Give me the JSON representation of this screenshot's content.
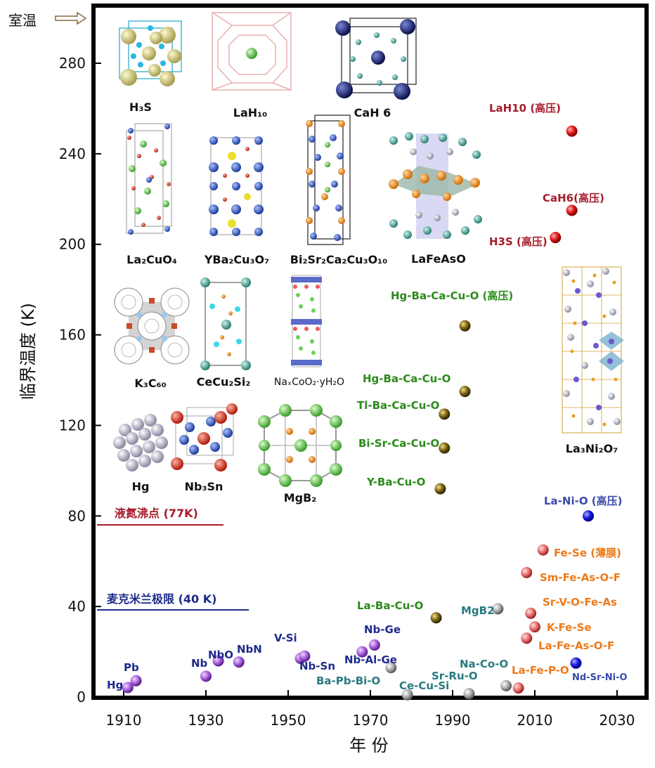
{
  "chart_data": {
    "type": "scatter",
    "xlabel": "年 份",
    "ylabel": "临界温度 (K)",
    "xlim": [
      1902,
      2038
    ],
    "ylim": [
      0,
      300
    ],
    "xticks": [
      1910,
      1930,
      1950,
      1970,
      1990,
      2010,
      2030
    ],
    "yticks": [
      0,
      40,
      80,
      120,
      160,
      200,
      240,
      280
    ],
    "room_temperature_label": "室温",
    "room_temperature_value": 298,
    "reference_lines": [
      {
        "label": "液氮沸点 (77K)",
        "value": 77,
        "color": "#a51c2a"
      },
      {
        "label": "麦克米兰极限 (40 K)",
        "value": 40,
        "color": "#1c2a8a"
      }
    ],
    "series": [
      {
        "color": "#9b4fd6",
        "points": [
          {
            "x": 1911,
            "y": 4.2,
            "label": "Hg"
          },
          {
            "x": 1913,
            "y": 7.2,
            "label": "Pb"
          },
          {
            "x": 1930,
            "y": 9.2,
            "label": "Nb"
          },
          {
            "x": 1933,
            "y": 16.0,
            "label": "NbN"
          },
          {
            "x": 1938,
            "y": 15.5,
            "label": "NbO"
          },
          {
            "x": 1953,
            "y": 17.1,
            "label": "V-Si"
          },
          {
            "x": 1954,
            "y": 18.1,
            "label": "Nb-Sn"
          },
          {
            "x": 1971,
            "y": 23.0,
            "label": "Nb-Ge"
          },
          {
            "x": 1968,
            "y": 20.0,
            "label": "Nb-Al-Ge"
          }
        ]
      },
      {
        "color": "#9a9a9a",
        "points": [
          {
            "x": 1975,
            "y": 13.0,
            "label": "Ba-Pb-Bi-O"
          },
          {
            "x": 1979,
            "y": 1.0,
            "label": "Ce-Cu-Si"
          },
          {
            "x": 1994,
            "y": 1.5,
            "label": "Sr-Ru-O"
          },
          {
            "x": 2003,
            "y": 5.0,
            "label": "Na-Co-O"
          },
          {
            "x": 2001,
            "y": 39,
            "label": "MgB2"
          }
        ]
      },
      {
        "color": "#6b5a10",
        "points": [
          {
            "x": 1986,
            "y": 35,
            "label": "La-Ba-Cu-O"
          },
          {
            "x": 1987,
            "y": 92,
            "label": "Y-Ba-Cu-O"
          },
          {
            "x": 1988,
            "y": 110,
            "label": "Bi-Sr-Ca-Cu-O"
          },
          {
            "x": 1988,
            "y": 125,
            "label": "Tl-Ba-Ca-Cu-O"
          },
          {
            "x": 1993,
            "y": 135,
            "label": "Hg-Ba-Ca-Cu-O"
          },
          {
            "x": 1993,
            "y": 164,
            "label": "Hg-Ba-Ca-Cu-O (高压)"
          }
        ]
      },
      {
        "color": "#e06464",
        "points": [
          {
            "x": 2006,
            "y": 4,
            "label": "La-Fe-P-O"
          },
          {
            "x": 2008,
            "y": 26,
            "label": "La-Fe-As-O-F"
          },
          {
            "x": 2008,
            "y": 55,
            "label": "Sm-Fe-As-O-F"
          },
          {
            "x": 2009,
            "y": 37,
            "label": "Sr-V-O-Fe-As"
          },
          {
            "x": 2010,
            "y": 31,
            "label": "K-Fe-Se"
          },
          {
            "x": 2012,
            "y": 65,
            "label": "Fe-Se (薄膜)"
          }
        ]
      },
      {
        "color": "#d01c1c",
        "points": [
          {
            "x": 2015,
            "y": 203,
            "label": "H3S (高压)"
          },
          {
            "x": 2019,
            "y": 215,
            "label": "CaH6(高压)"
          },
          {
            "x": 2019,
            "y": 250,
            "label": "LaH10 (高压)"
          }
        ]
      },
      {
        "color": "#1a1ad6",
        "points": [
          {
            "x": 2020,
            "y": 15,
            "label": "Nd-Sr-Ni-O"
          },
          {
            "x": 2023,
            "y": 80,
            "label": "La-Ni-O (高压)"
          }
        ]
      }
    ]
  },
  "structures": {
    "H3S": "H₃S",
    "LaH10": "LaH₁₀",
    "CaH6": "CaH 6",
    "La2CuO4": "La₂CuO₄",
    "YBCO": "YBa₂Cu₃O₇",
    "BSCCO": "Bi₂Sr₂Ca₂Cu₃O₁₀",
    "LaFeAsO": "LaFeAsO",
    "K3C60": "K₃C₆₀",
    "CeCu2Si2": "CeCu₂Si₂",
    "NaCoO2": "NaₓCoO₂·yH₂O",
    "Hg": "Hg",
    "Nb3Sn": "Nb₃Sn",
    "MgB2": "MgB₂",
    "La3Ni2O7": "La₃Ni₂O₇"
  }
}
